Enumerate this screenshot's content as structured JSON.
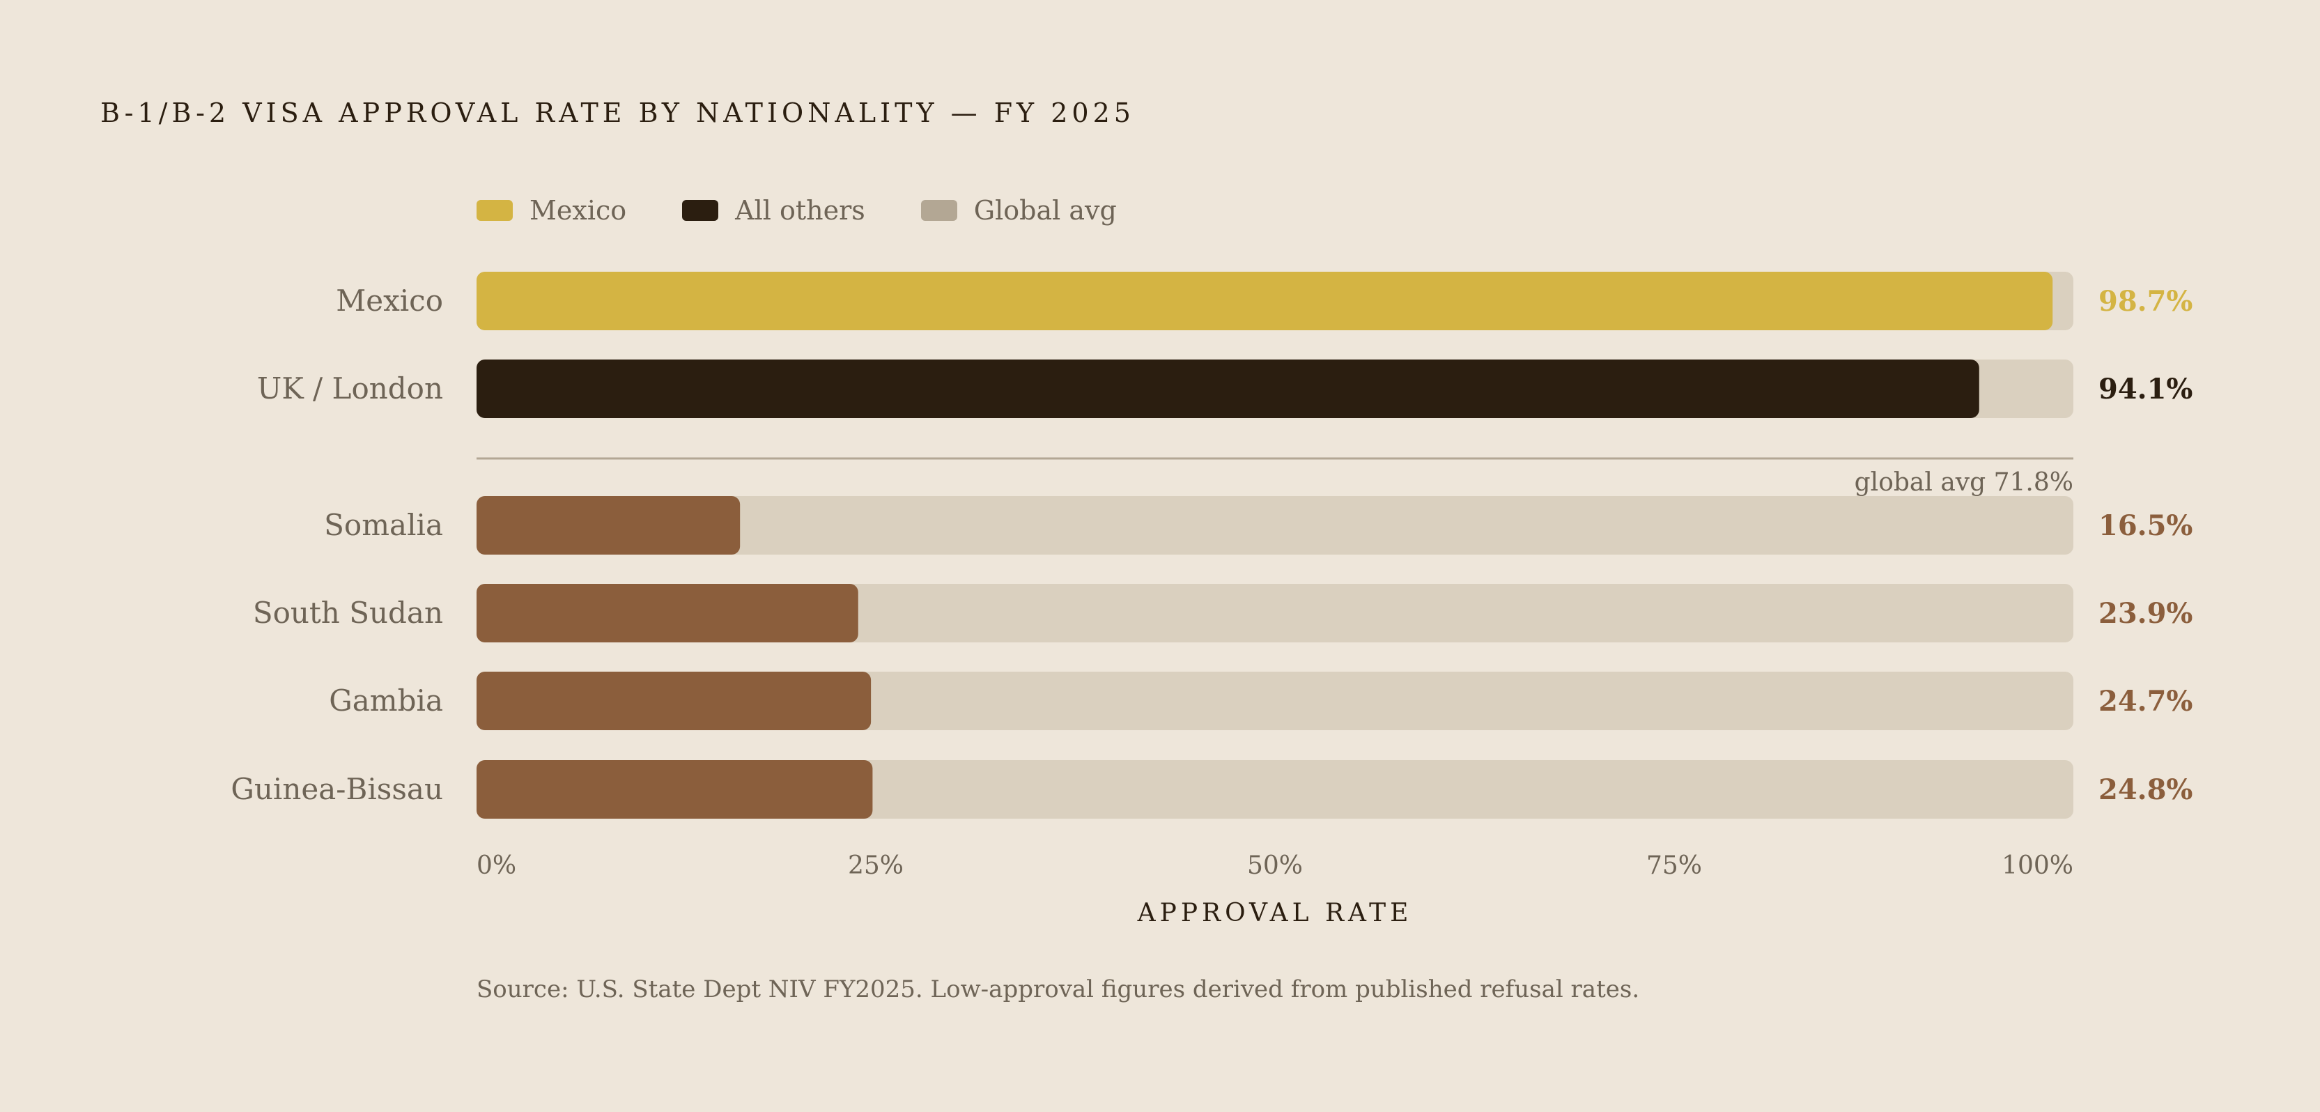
{
  "title": "B-1/B-2 VISA APPROVAL RATE BY NATIONALITY — FY 2025",
  "legend": [
    {
      "label": "Mexico",
      "color": "#D4B443"
    },
    {
      "label": "All others",
      "color": "#2B1E10"
    },
    {
      "label": "Global avg",
      "color": "#B3A794"
    }
  ],
  "chart_data": {
    "type": "bar",
    "orientation": "horizontal",
    "categories": [
      "Mexico",
      "UK / London",
      "Somalia",
      "South Sudan",
      "Gambia",
      "Guinea-Bissau"
    ],
    "values": [
      98.7,
      94.1,
      16.5,
      23.9,
      24.7,
      24.8
    ],
    "value_labels": [
      "98.7%",
      "94.1%",
      "16.5%",
      "23.9%",
      "24.7%",
      "24.8%"
    ],
    "bar_colors": [
      "#D4B443",
      "#2B1E10",
      "#8B5E3C",
      "#8B5E3C",
      "#8B5E3C",
      "#8B5E3C"
    ],
    "track_color": "#DAD0BF",
    "xlim": [
      0,
      100
    ],
    "xticks": [
      0,
      25,
      50,
      75,
      100
    ],
    "xtick_labels": [
      "0%",
      "25%",
      "50%",
      "75%",
      "100%"
    ],
    "xlabel": "APPROVAL RATE",
    "reference": {
      "label": "global avg 71.8%",
      "value": 71.8,
      "color": "#B3A794"
    },
    "grid": false,
    "legend_position": "top-left"
  },
  "axis_title": "APPROVAL RATE",
  "source": "Source: U.S. State Dept NIV FY2025. Low-approval figures derived from published refusal rates."
}
